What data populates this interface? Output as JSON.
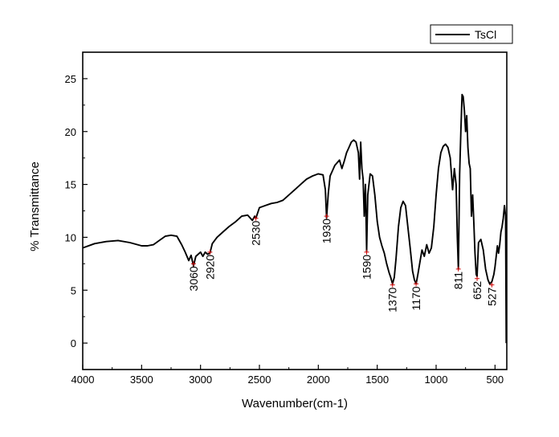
{
  "chart_data": {
    "type": "line",
    "xlabel": "Wavenumber(cm-1)",
    "ylabel": "% Transmittance",
    "xlim": [
      4000,
      400
    ],
    "ylim": [
      -2.5,
      27.5
    ],
    "x_ticks": [
      "4000",
      "3500",
      "3000",
      "2500",
      "2000",
      "1500",
      "1000",
      "500"
    ],
    "y_ticks": [
      "0",
      "5",
      "10",
      "15",
      "20",
      "25"
    ],
    "legend": {
      "position": "top-right",
      "entries": [
        "TsCl"
      ]
    },
    "grid": false,
    "line_color": "#000000",
    "marker_color": "#d00000",
    "series": [
      {
        "name": "TsCl",
        "x": [
          4000,
          3900,
          3800,
          3700,
          3600,
          3500,
          3450,
          3400,
          3350,
          3300,
          3250,
          3200,
          3160,
          3130,
          3100,
          3080,
          3060,
          3040,
          3000,
          2980,
          2960,
          2940,
          2920,
          2900,
          2860,
          2800,
          2760,
          2700,
          2650,
          2600,
          2560,
          2540,
          2530,
          2500,
          2450,
          2400,
          2350,
          2300,
          2250,
          2200,
          2150,
          2100,
          2050,
          2000,
          1960,
          1940,
          1930,
          1915,
          1900,
          1860,
          1820,
          1800,
          1780,
          1760,
          1740,
          1720,
          1700,
          1680,
          1660,
          1650,
          1640,
          1630,
          1620,
          1610,
          1600,
          1590,
          1580,
          1560,
          1540,
          1520,
          1500,
          1480,
          1460,
          1440,
          1420,
          1400,
          1385,
          1370,
          1355,
          1340,
          1320,
          1300,
          1280,
          1260,
          1240,
          1220,
          1200,
          1185,
          1170,
          1155,
          1140,
          1120,
          1100,
          1080,
          1060,
          1040,
          1020,
          1000,
          980,
          960,
          940,
          920,
          900,
          880,
          860,
          845,
          830,
          820,
          811,
          800,
          790,
          780,
          770,
          760,
          750,
          740,
          730,
          720,
          710,
          700,
          690,
          680,
          670,
          660,
          652,
          640,
          620,
          600,
          580,
          560,
          545,
          527,
          510,
          500,
          490,
          480,
          470,
          460,
          450,
          440,
          430,
          420,
          410,
          405
        ],
        "y": [
          9.0,
          9.4,
          9.6,
          9.7,
          9.5,
          9.2,
          9.2,
          9.3,
          9.7,
          10.1,
          10.2,
          10.1,
          9.3,
          8.6,
          7.8,
          8.3,
          7.3,
          8.2,
          8.6,
          8.2,
          8.6,
          8.4,
          8.5,
          9.4,
          10.0,
          10.6,
          11.0,
          11.5,
          12.0,
          12.1,
          11.6,
          12.0,
          11.8,
          12.8,
          13.0,
          13.2,
          13.3,
          13.5,
          14.0,
          14.5,
          15.0,
          15.5,
          15.8,
          16.0,
          15.9,
          14.5,
          11.8,
          14.2,
          15.8,
          16.8,
          17.3,
          16.5,
          17.2,
          18.0,
          18.5,
          19.0,
          19.2,
          19.0,
          18.0,
          15.5,
          19.0,
          16.5,
          15.5,
          12.0,
          15.0,
          8.7,
          14.0,
          16.0,
          15.8,
          14.0,
          11.5,
          10.0,
          9.2,
          8.5,
          7.5,
          6.7,
          6.2,
          5.6,
          6.2,
          8.0,
          11.0,
          12.8,
          13.4,
          13.0,
          11.0,
          9.0,
          6.8,
          6.0,
          5.6,
          6.5,
          7.5,
          8.8,
          8.2,
          9.3,
          8.5,
          9.0,
          11.0,
          14.0,
          16.5,
          18.0,
          18.6,
          18.8,
          18.5,
          17.5,
          14.5,
          16.5,
          15.0,
          10.0,
          7.0,
          16.0,
          20.0,
          23.5,
          23.3,
          22.0,
          20.0,
          21.5,
          18.5,
          17.0,
          16.5,
          12.0,
          14.0,
          11.5,
          8.5,
          6.5,
          6.3,
          9.5,
          9.8,
          8.8,
          7.0,
          6.0,
          5.6,
          5.8,
          6.5,
          7.2,
          8.2,
          9.2,
          8.5,
          9.3,
          10.5,
          11.0,
          11.8,
          13.0,
          12.0,
          0.0
        ]
      }
    ],
    "annotations": [
      {
        "label": "3060",
        "x": 3060,
        "y": 7.5
      },
      {
        "label": "2920",
        "x": 2920,
        "y": 8.6
      },
      {
        "label": "2530",
        "x": 2530,
        "y": 11.8
      },
      {
        "label": "1930",
        "x": 1930,
        "y": 12.0
      },
      {
        "label": "1590",
        "x": 1590,
        "y": 8.6
      },
      {
        "label": "1370",
        "x": 1370,
        "y": 5.5
      },
      {
        "label": "1170",
        "x": 1170,
        "y": 5.6
      },
      {
        "label": "811",
        "x": 811,
        "y": 7.0
      },
      {
        "label": "652",
        "x": 652,
        "y": 6.1
      },
      {
        "label": "527",
        "x": 527,
        "y": 5.5
      }
    ]
  }
}
